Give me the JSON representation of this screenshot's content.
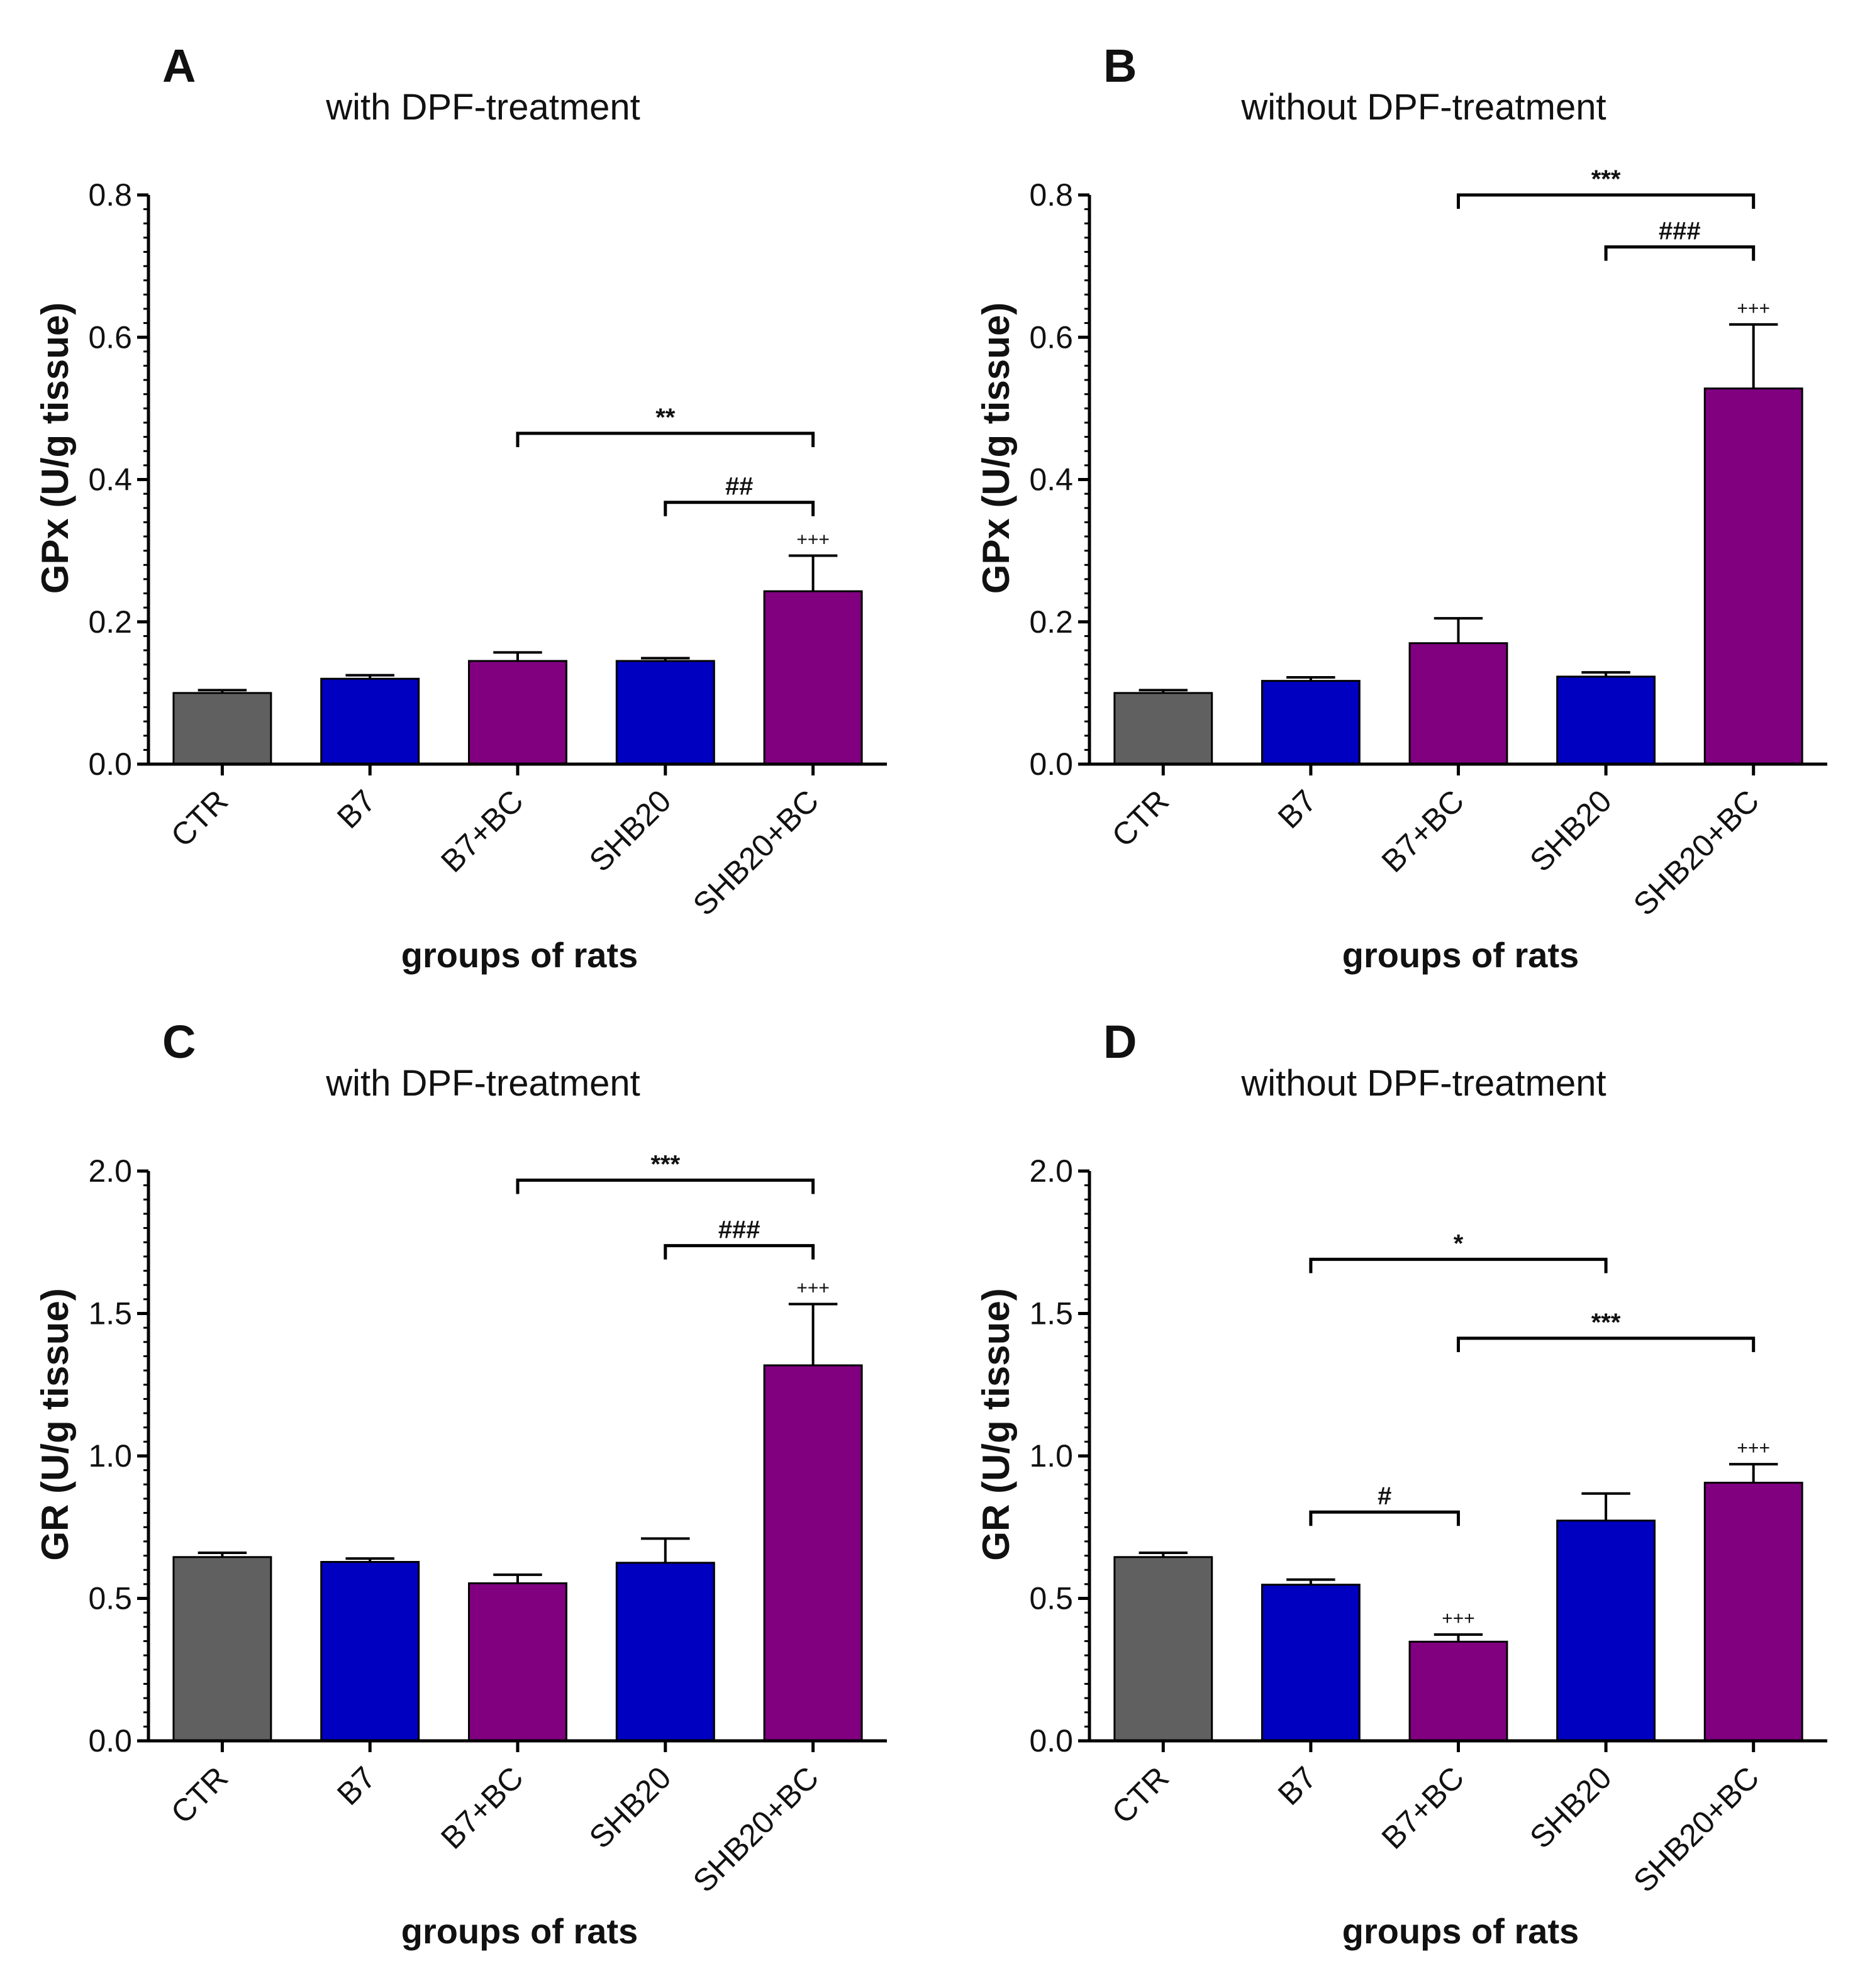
{
  "figure": {
    "style": {
      "axis_color": "#000000"
    }
  },
  "chart_data": [
    {
      "panel": "A",
      "type": "bar",
      "title": "with DPF-treatment",
      "xlabel": "groups of rats",
      "ylabel": "GPx (U/g tissue)",
      "ylim": [
        0,
        0.8
      ],
      "yticks": [
        0,
        0.2,
        0.4,
        0.6,
        0.8
      ],
      "ytick_labels": [
        "0.0",
        "0.2",
        "0.4",
        "0.6",
        "0.8"
      ],
      "categories": [
        "CTR",
        "B7",
        "B7+BC",
        "SHB20",
        "SHB20+BC"
      ],
      "values": [
        0.1,
        0.12,
        0.145,
        0.145,
        0.243
      ],
      "errors": [
        0.004,
        0.005,
        0.012,
        0.004,
        0.05
      ],
      "colors": [
        "#606060",
        "#0000c0",
        "#800080",
        "#0000c0",
        "#800080"
      ],
      "plus_annotations": [
        {
          "bar": 4,
          "text": "+++"
        }
      ],
      "significance": [
        {
          "from": 2,
          "to": 4,
          "y": 0.465,
          "text": "**"
        },
        {
          "from": 3,
          "to": 4,
          "y": 0.368,
          "text": "##"
        }
      ]
    },
    {
      "panel": "B",
      "type": "bar",
      "title": "without DPF-treatment",
      "xlabel": "groups of rats",
      "ylabel": "GPx (U/g tissue)",
      "ylim": [
        0,
        0.8
      ],
      "yticks": [
        0,
        0.2,
        0.4,
        0.6,
        0.8
      ],
      "ytick_labels": [
        "0.0",
        "0.2",
        "0.4",
        "0.6",
        "0.8"
      ],
      "categories": [
        "CTR",
        "B7",
        "B7+BC",
        "SHB20",
        "SHB20+BC"
      ],
      "values": [
        0.1,
        0.117,
        0.17,
        0.123,
        0.528
      ],
      "errors": [
        0.004,
        0.005,
        0.035,
        0.006,
        0.09
      ],
      "colors": [
        "#606060",
        "#0000c0",
        "#800080",
        "#0000c0",
        "#800080"
      ],
      "plus_annotations": [
        {
          "bar": 4,
          "text": "+++"
        }
      ],
      "significance": [
        {
          "from": 2,
          "to": 4,
          "y": 0.8,
          "text": "***"
        },
        {
          "from": 3,
          "to": 4,
          "y": 0.727,
          "text": "###"
        }
      ]
    },
    {
      "panel": "C",
      "type": "bar",
      "title": "with DPF-treatment",
      "xlabel": "groups of rats",
      "ylabel": "GR (U/g tissue)",
      "ylim": [
        0,
        2.0
      ],
      "yticks": [
        0,
        0.5,
        1.0,
        1.5,
        2.0
      ],
      "ytick_labels": [
        "0.0",
        "0.5",
        "1.0",
        "1.5",
        "2.0"
      ],
      "categories": [
        "CTR",
        "B7",
        "B7+BC",
        "SHB20",
        "SHB20+BC"
      ],
      "values": [
        0.645,
        0.628,
        0.553,
        0.625,
        1.318
      ],
      "errors": [
        0.015,
        0.012,
        0.03,
        0.085,
        0.215
      ],
      "colors": [
        "#606060",
        "#0000c0",
        "#800080",
        "#0000c0",
        "#800080"
      ],
      "plus_annotations": [
        {
          "bar": 4,
          "text": "+++"
        }
      ],
      "significance": [
        {
          "from": 2,
          "to": 4,
          "y": 1.968,
          "text": "***"
        },
        {
          "from": 3,
          "to": 4,
          "y": 1.738,
          "text": "###"
        }
      ]
    },
    {
      "panel": "D",
      "type": "bar",
      "title": "without DPF-treatment",
      "xlabel": "groups of rats",
      "ylabel": "GR (U/g tissue)",
      "ylim": [
        0,
        2.0
      ],
      "yticks": [
        0,
        0.5,
        1.0,
        1.5,
        2.0
      ],
      "ytick_labels": [
        "0.0",
        "0.5",
        "1.0",
        "1.5",
        "2.0"
      ],
      "categories": [
        "CTR",
        "B7",
        "B7+BC",
        "SHB20",
        "SHB20+BC"
      ],
      "values": [
        0.645,
        0.548,
        0.348,
        0.773,
        0.906
      ],
      "errors": [
        0.015,
        0.018,
        0.025,
        0.095,
        0.065
      ],
      "colors": [
        "#606060",
        "#0000c0",
        "#800080",
        "#0000c0",
        "#800080"
      ],
      "plus_annotations": [
        {
          "bar": 2,
          "text": "+++"
        },
        {
          "bar": 4,
          "text": "+++"
        }
      ],
      "significance": [
        {
          "from": 1,
          "to": 3,
          "y": 1.69,
          "text": "*"
        },
        {
          "from": 2,
          "to": 4,
          "y": 1.413,
          "text": "***"
        },
        {
          "from": 1,
          "to": 2,
          "y": 0.803,
          "text": "#"
        }
      ]
    }
  ]
}
